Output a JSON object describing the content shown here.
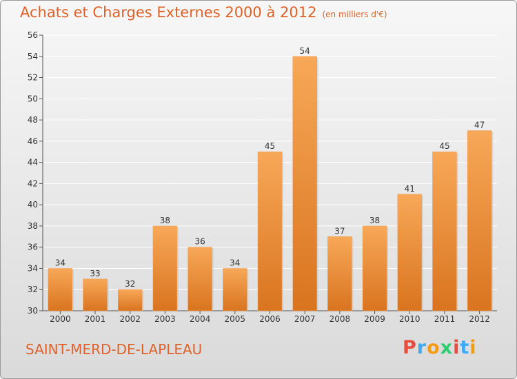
{
  "header": {
    "title": "Achats et Charges Externes 2000 à 2012",
    "unit": "(en milliers d'€)"
  },
  "footer": {
    "place": "SAINT-MERD-DE-LAPLEAU",
    "logo": "Proxiti",
    "logo_colors": [
      "#e74c3c",
      "#3fa9f5",
      "#f39c12",
      "#2ecc71",
      "#e74c3c",
      "#3fa9f5",
      "#f39c12"
    ]
  },
  "colors": {
    "bar_top": "#f7a858",
    "bar_bottom": "#d9741f",
    "accent": "#e0622a",
    "grid": "#ffffff",
    "axis_text": "#333333"
  },
  "chart_data": {
    "type": "bar",
    "categories": [
      "2000",
      "2001",
      "2002",
      "2003",
      "2004",
      "2005",
      "2006",
      "2007",
      "2008",
      "2009",
      "2010",
      "2011",
      "2012"
    ],
    "values": [
      34,
      33,
      32,
      38,
      36,
      34,
      45,
      54,
      37,
      38,
      41,
      45,
      47
    ],
    "ylim": [
      30,
      56
    ],
    "yticks": [
      30,
      32,
      34,
      36,
      38,
      40,
      42,
      44,
      46,
      48,
      50,
      52,
      54,
      56
    ],
    "grid": true,
    "title": "Achats et Charges Externes 2000 à 2012",
    "xlabel": "",
    "ylabel": ""
  }
}
